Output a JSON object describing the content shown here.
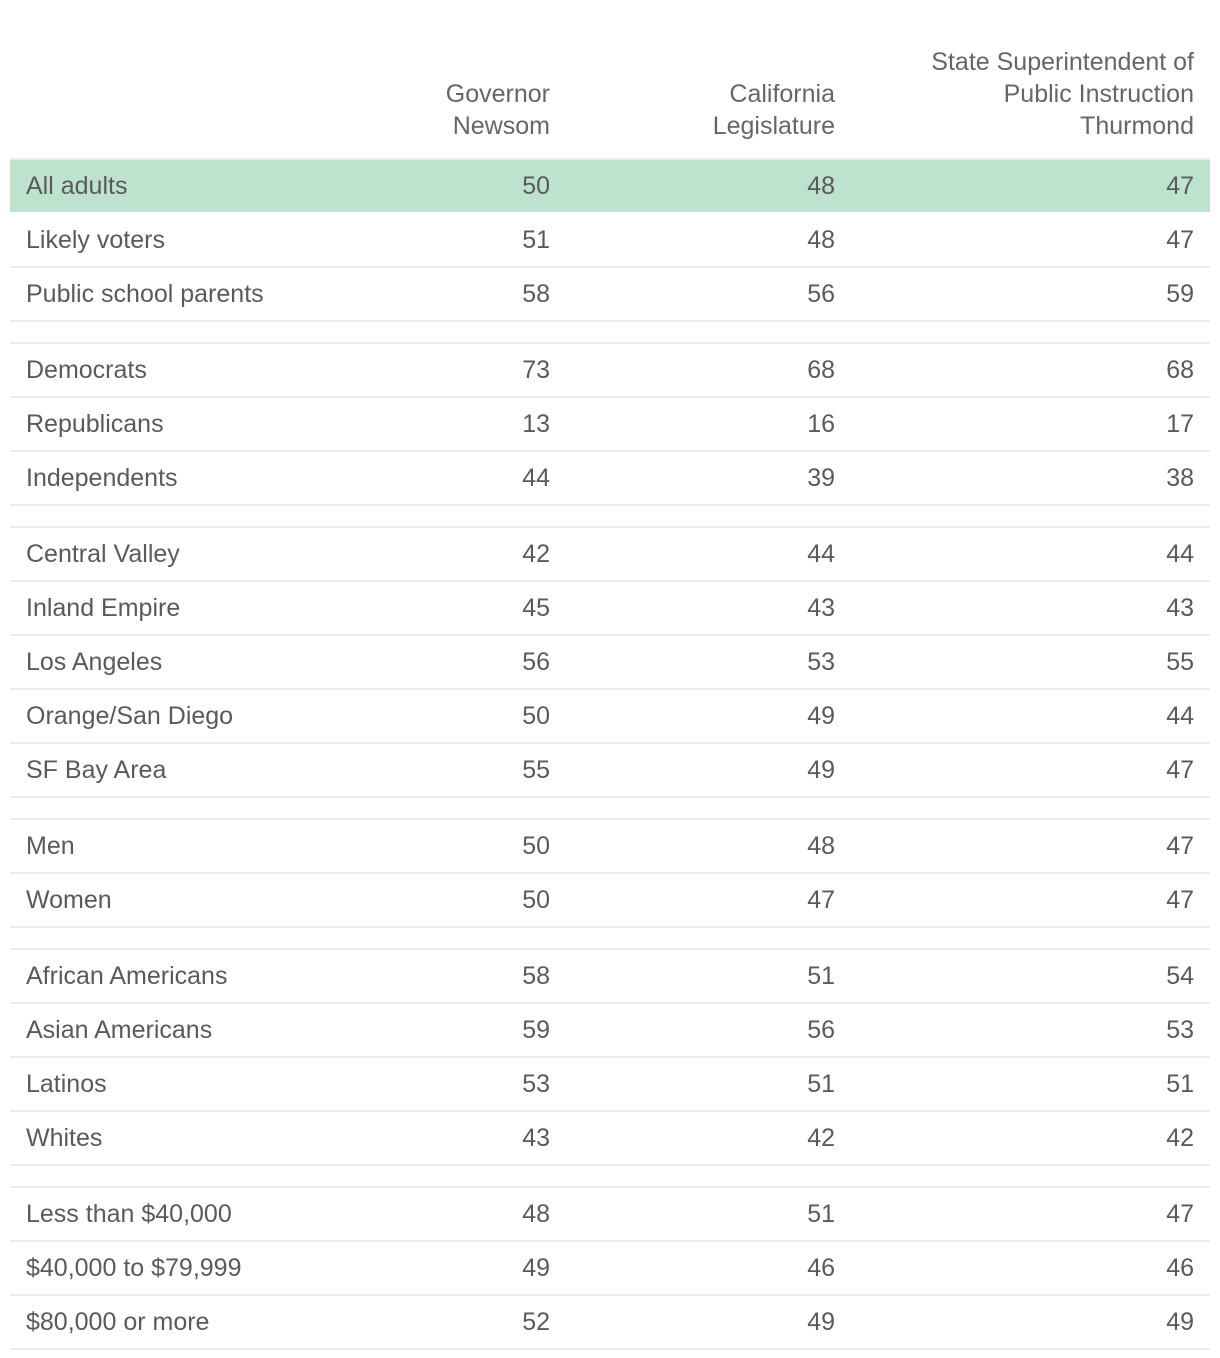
{
  "chart_data": {
    "type": "table",
    "columns": [
      "Governor\nNewsom",
      "California\nLegislature",
      "State Superintendent of\nPublic Instruction\nThurmond"
    ],
    "highlight_color": "#bde3cf",
    "groups": [
      {
        "rows": [
          {
            "label": "All adults",
            "values": [
              50,
              48,
              47
            ],
            "highlight": true
          },
          {
            "label": "Likely voters",
            "values": [
              51,
              48,
              47
            ]
          },
          {
            "label": "Public school parents",
            "values": [
              58,
              56,
              59
            ]
          }
        ]
      },
      {
        "rows": [
          {
            "label": "Democrats",
            "values": [
              73,
              68,
              68
            ]
          },
          {
            "label": "Republicans",
            "values": [
              13,
              16,
              17
            ]
          },
          {
            "label": "Independents",
            "values": [
              44,
              39,
              38
            ]
          }
        ]
      },
      {
        "rows": [
          {
            "label": "Central Valley",
            "values": [
              42,
              44,
              44
            ]
          },
          {
            "label": "Inland Empire",
            "values": [
              45,
              43,
              43
            ]
          },
          {
            "label": "Los Angeles",
            "values": [
              56,
              53,
              55
            ]
          },
          {
            "label": "Orange/San Diego",
            "values": [
              50,
              49,
              44
            ]
          },
          {
            "label": "SF Bay Area",
            "values": [
              55,
              49,
              47
            ]
          }
        ]
      },
      {
        "rows": [
          {
            "label": "Men",
            "values": [
              50,
              48,
              47
            ]
          },
          {
            "label": "Women",
            "values": [
              50,
              47,
              47
            ]
          }
        ]
      },
      {
        "rows": [
          {
            "label": "African Americans",
            "values": [
              58,
              51,
              54
            ]
          },
          {
            "label": "Asian Americans",
            "values": [
              59,
              56,
              53
            ]
          },
          {
            "label": "Latinos",
            "values": [
              53,
              51,
              51
            ]
          },
          {
            "label": "Whites",
            "values": [
              43,
              42,
              42
            ]
          }
        ]
      },
      {
        "rows": [
          {
            "label": "Less than $40,000",
            "values": [
              48,
              51,
              47
            ]
          },
          {
            "label": "$40,000 to $79,999",
            "values": [
              49,
              46,
              46
            ]
          },
          {
            "label": "$80,000 or more",
            "values": [
              52,
              49,
              49
            ]
          }
        ]
      }
    ]
  }
}
